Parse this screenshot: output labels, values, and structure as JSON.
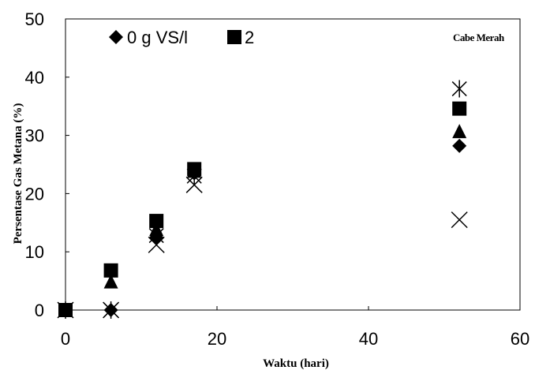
{
  "chart_data": {
    "type": "scatter",
    "title": "",
    "xlabel": "Waktu (hari)",
    "ylabel": "Persentase Gas Metana (%)",
    "xlim": [
      0,
      60
    ],
    "ylim": [
      0,
      50
    ],
    "xticks": [
      "0",
      "20",
      "40",
      "60"
    ],
    "yticks": [
      "0",
      "10",
      "20",
      "30",
      "40",
      "50"
    ],
    "grid": false,
    "legend_position": "top-left",
    "annotation": "Cabe Merah",
    "series": [
      {
        "name": "0 g VS/l",
        "marker": "diamond",
        "points": [
          [
            0,
            0
          ],
          [
            6,
            0
          ],
          [
            12,
            12.5
          ],
          [
            17,
            23.5
          ],
          [
            52,
            28.2
          ]
        ]
      },
      {
        "name": "2",
        "marker": "square",
        "points": [
          [
            0,
            0
          ],
          [
            6,
            6.8
          ],
          [
            12,
            15.3
          ],
          [
            17,
            24.2
          ],
          [
            52,
            34.6
          ]
        ]
      },
      {
        "name": "",
        "marker": "triangle",
        "points": [
          [
            0,
            0
          ],
          [
            6,
            4.8
          ],
          [
            12,
            13.8
          ],
          [
            17,
            23.8
          ],
          [
            52,
            30.6
          ]
        ]
      },
      {
        "name": "",
        "marker": "x",
        "points": [
          [
            0,
            0
          ],
          [
            6,
            0
          ],
          [
            12,
            11.2
          ],
          [
            17,
            21.5
          ],
          [
            52,
            15.5
          ]
        ]
      },
      {
        "name": "",
        "marker": "asterisk",
        "points": [
          [
            0,
            0
          ],
          [
            6,
            0
          ],
          [
            12,
            12.8
          ],
          [
            17,
            23.0
          ],
          [
            52,
            38.0
          ]
        ]
      }
    ]
  }
}
